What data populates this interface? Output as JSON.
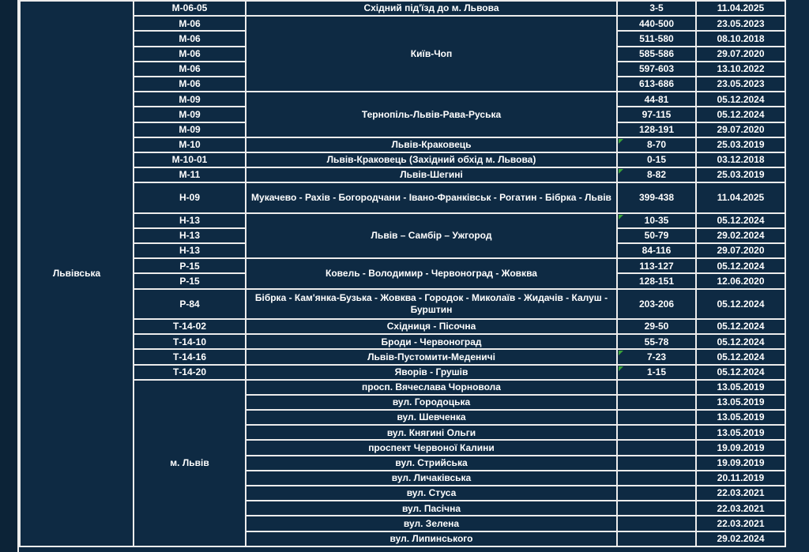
{
  "colors": {
    "background": "#0e2a43",
    "left_strip": "#0c2337",
    "grid_border": "#ececec",
    "text": "#ffffff",
    "alert_red": "#ff0000",
    "note_green": "#3ba33a"
  },
  "table": {
    "region": {
      "label": "Львівська",
      "rowspan": 34
    },
    "rows": [
      {
        "code": "М-06-05",
        "name": "Східний під'їзд до м. Львова",
        "km": "3-5",
        "date": "11.04.2025",
        "red": true
      },
      {
        "code": "М-06",
        "name": "Київ-Чоп",
        "name_span": 5,
        "km": "440-500",
        "date": "23.05.2023"
      },
      {
        "code": "М-06",
        "km": "511-580",
        "date": "08.10.2018"
      },
      {
        "code": "М-06",
        "km": "585-586",
        "date": "29.07.2020"
      },
      {
        "code": "М-06",
        "km": "597-603",
        "date": "13.10.2022"
      },
      {
        "code": "М-06",
        "km": "613-686",
        "date": "23.05.2023"
      },
      {
        "code": "М-09",
        "name": "Тернопіль-Львів-Рава-Руська",
        "name_span": 3,
        "km": "44-81",
        "date": "05.12.2024"
      },
      {
        "code": "М-09",
        "km": "97-115",
        "date": "05.12.2024"
      },
      {
        "code": "М-09",
        "km": "128-191",
        "date": "29.07.2020"
      },
      {
        "code": "М-10",
        "name": "Львів-Краковець",
        "km": "8-70",
        "date": "25.03.2019",
        "note": true
      },
      {
        "code": "М-10-01",
        "name": "Львів-Краковець (Західний обхід м. Львова)",
        "km": "0-15",
        "date": "03.12.2018"
      },
      {
        "code": "М-11",
        "name": "Львів-Шегині",
        "km": "8-82",
        "date": "25.03.2019",
        "note": true
      },
      {
        "code": "Н-09",
        "name": "Мукачево - Рахів - Богородчани - Івано-Франківськ - Рогатин - Бібрка - Львів",
        "km": "399-438",
        "date": "11.04.2025",
        "h": 2
      },
      {
        "code": "Н-13",
        "name": "Львів – Самбір – Ужгород",
        "name_span": 3,
        "km": "10-35",
        "date": "05.12.2024",
        "note": true
      },
      {
        "code": "Н-13",
        "km": "50-79",
        "date": "29.02.2024"
      },
      {
        "code": "Н-13",
        "km": "84-116",
        "date": "29.07.2020"
      },
      {
        "code": "Р-15",
        "name": "Ковель - Володимир - Червоноград - Жовква",
        "name_span": 2,
        "km": "113-127",
        "date": "05.12.2024"
      },
      {
        "code": "Р-15",
        "km": "128-151",
        "date": "12.06.2020"
      },
      {
        "code": "Р-84",
        "name": "Бібрка - Кам'янка-Бузька - Жовква - Городок - Миколаїв - Жидачів - Калуш - Бурштин",
        "km": "203-206",
        "date": "05.12.2024",
        "h": 2
      },
      {
        "code": "Т-14-02",
        "name": "Східниця - Пісочна",
        "km": "29-50",
        "date": "05.12.2024"
      },
      {
        "code": "Т-14-10",
        "name": "Броди - Червоноград",
        "km": "55-78",
        "date": "05.12.2024"
      },
      {
        "code": "Т-14-16",
        "name": "Львів-Пустомити-Меденичі",
        "km": "7-23",
        "date": "05.12.2024",
        "note": true
      },
      {
        "code": "Т-14-20",
        "name": "Яворів - Грушів",
        "km": "1-15",
        "date": "05.12.2024",
        "note": true
      },
      {
        "code": "м. Львів",
        "code_span": 11,
        "name": "просп. Вячеслава Чорновола",
        "km": "",
        "date": "13.05.2019"
      },
      {
        "name": "вул. Городоцька",
        "km": "",
        "date": "13.05.2019"
      },
      {
        "name": "вул. Шевченка",
        "km": "",
        "date": "13.05.2019"
      },
      {
        "name": "вул. Княгині Ольги",
        "km": "",
        "date": "13.05.2019"
      },
      {
        "name": "проспект Червоної Калини",
        "km": "",
        "date": "19.09.2019"
      },
      {
        "name": "вул. Стрийська",
        "km": "",
        "date": "19.09.2019"
      },
      {
        "name": "вул. Личаківська",
        "km": "",
        "date": "20.11.2019"
      },
      {
        "name": "вул. Стуса",
        "km": "",
        "date": "22.03.2021"
      },
      {
        "name": "вул. Пасічна",
        "km": "",
        "date": "22.03.2021"
      },
      {
        "name": "вул. Зелена",
        "km": "",
        "date": "22.03.2021"
      },
      {
        "name": "вул. Липинського",
        "km": "",
        "date": "29.02.2024"
      }
    ]
  }
}
